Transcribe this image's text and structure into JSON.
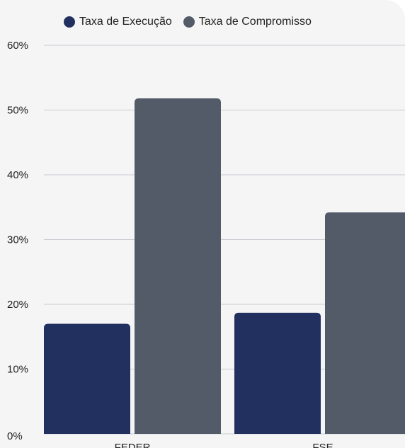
{
  "chart_data": {
    "type": "bar",
    "categories": [
      "FEDER",
      "FSE"
    ],
    "series": [
      {
        "name": "Taxa de Execução",
        "values": [
          17,
          18.7
        ],
        "color": "#21305f"
      },
      {
        "name": "Taxa de Compromisso",
        "values": [
          51.8,
          34.2
        ],
        "color": "#535a68"
      }
    ],
    "ylim": [
      0,
      60
    ],
    "yticks": [
      "0%",
      "10%",
      "20%",
      "30%",
      "40%",
      "50%",
      "60%"
    ],
    "grid": true,
    "legend_position": "top"
  }
}
